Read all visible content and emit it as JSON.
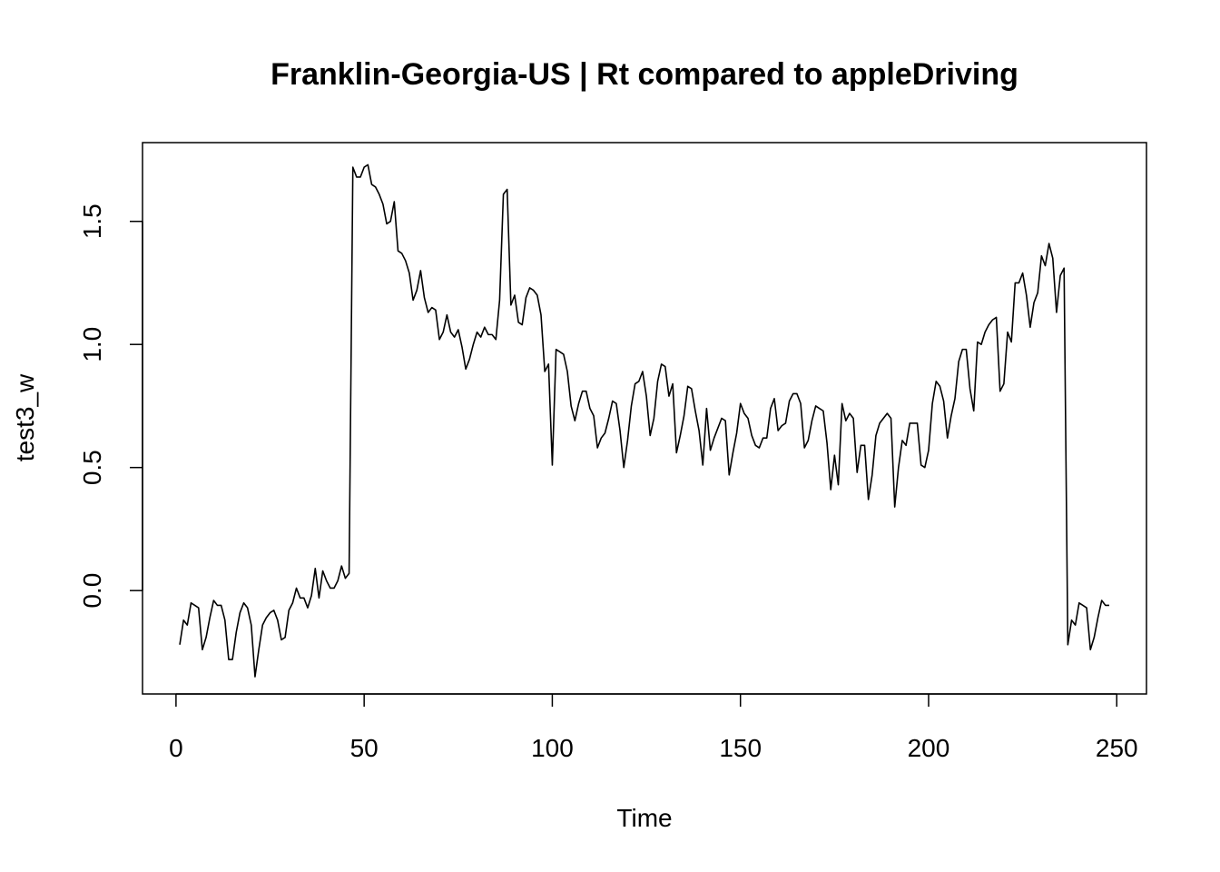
{
  "chart_data": {
    "type": "line",
    "title": "Franklin-Georgia-US | Rt compared to appleDriving",
    "xlabel": "Time",
    "ylabel": "test3_w",
    "xlim": [
      -8.9,
      257.9
    ],
    "ylim": [
      -0.42,
      1.82
    ],
    "xticks": [
      0,
      50,
      100,
      150,
      200,
      250
    ],
    "xtick_labels": [
      "0",
      "50",
      "100",
      "150",
      "200",
      "250"
    ],
    "yticks": [
      0.0,
      0.5,
      1.0,
      1.5
    ],
    "ytick_labels": [
      "0.0",
      "0.5",
      "1.0",
      "1.5"
    ],
    "grid": false,
    "legend": "none",
    "line_color": "#000000",
    "series": [
      {
        "x": [
          1,
          2,
          3,
          4,
          5,
          6,
          7,
          8,
          9,
          10,
          11,
          12,
          13,
          14,
          15,
          16,
          17,
          18,
          19,
          20,
          21,
          22,
          23,
          24,
          25,
          26,
          27,
          28,
          29,
          30,
          31,
          32,
          33,
          34,
          35,
          36,
          37,
          38,
          39,
          40,
          41,
          42,
          43,
          44,
          45,
          46,
          47,
          48,
          49,
          50,
          51,
          52,
          53,
          54,
          55,
          56,
          57,
          58,
          59,
          60,
          61,
          62,
          63,
          64,
          65,
          66,
          67,
          68,
          69,
          70,
          71,
          72,
          73,
          74,
          75,
          76,
          77,
          78,
          79,
          80,
          81,
          82,
          83,
          84,
          85,
          86,
          87,
          88,
          89,
          90,
          91,
          92,
          93,
          94,
          95,
          96,
          97,
          98,
          99,
          100,
          101,
          102,
          103,
          104,
          105,
          106,
          107,
          108,
          109,
          110,
          111,
          112,
          113,
          114,
          115,
          116,
          117,
          118,
          119,
          120,
          121,
          122,
          123,
          124,
          125,
          126,
          127,
          128,
          129,
          130,
          131,
          132,
          133,
          134,
          135,
          136,
          137,
          138,
          139,
          140,
          141,
          142,
          143,
          144,
          145,
          146,
          147,
          148,
          149,
          150,
          151,
          152,
          153,
          154,
          155,
          156,
          157,
          158,
          159,
          160,
          161,
          162,
          163,
          164,
          165,
          166,
          167,
          168,
          169,
          170,
          171,
          172,
          173,
          174,
          175,
          176,
          177,
          178,
          179,
          180,
          181,
          182,
          183,
          184,
          185,
          186,
          187,
          188,
          189,
          190,
          191,
          192,
          193,
          194,
          195,
          196,
          197,
          198,
          199,
          200,
          201,
          202,
          203,
          204,
          205,
          206,
          207,
          208,
          209,
          210,
          211,
          212,
          213,
          214,
          215,
          216,
          217,
          218,
          219,
          220,
          221,
          222,
          223,
          224,
          225,
          226,
          227,
          228,
          229,
          230,
          231,
          232,
          233,
          234,
          235,
          236,
          237,
          238,
          239,
          240,
          241,
          242,
          243,
          244,
          245,
          246,
          247,
          248
        ],
        "values": [
          -0.22,
          -0.12,
          -0.14,
          -0.05,
          -0.06,
          -0.07,
          -0.24,
          -0.19,
          -0.11,
          -0.04,
          -0.06,
          -0.06,
          -0.12,
          -0.28,
          -0.28,
          -0.17,
          -0.09,
          -0.05,
          -0.07,
          -0.14,
          -0.35,
          -0.24,
          -0.14,
          -0.11,
          -0.09,
          -0.08,
          -0.12,
          -0.2,
          -0.19,
          -0.08,
          -0.05,
          0.01,
          -0.03,
          -0.03,
          -0.07,
          -0.02,
          0.09,
          -0.03,
          0.08,
          0.04,
          0.01,
          0.01,
          0.04,
          0.1,
          0.05,
          0.07,
          1.72,
          1.68,
          1.68,
          1.72,
          1.73,
          1.65,
          1.64,
          1.61,
          1.57,
          1.49,
          1.5,
          1.58,
          1.38,
          1.37,
          1.34,
          1.29,
          1.18,
          1.22,
          1.3,
          1.19,
          1.13,
          1.15,
          1.14,
          1.02,
          1.05,
          1.12,
          1.05,
          1.03,
          1.06,
          0.99,
          0.9,
          0.94,
          1.0,
          1.05,
          1.03,
          1.07,
          1.04,
          1.04,
          1.02,
          1.18,
          1.61,
          1.63,
          1.16,
          1.2,
          1.09,
          1.08,
          1.19,
          1.23,
          1.22,
          1.2,
          1.12,
          0.89,
          0.92,
          0.51,
          0.98,
          0.97,
          0.96,
          0.89,
          0.75,
          0.69,
          0.76,
          0.81,
          0.81,
          0.74,
          0.71,
          0.58,
          0.62,
          0.64,
          0.7,
          0.77,
          0.76,
          0.65,
          0.5,
          0.61,
          0.75,
          0.84,
          0.85,
          0.89,
          0.79,
          0.63,
          0.7,
          0.85,
          0.92,
          0.91,
          0.79,
          0.84,
          0.56,
          0.63,
          0.71,
          0.83,
          0.82,
          0.73,
          0.65,
          0.51,
          0.74,
          0.57,
          0.62,
          0.66,
          0.7,
          0.69,
          0.47,
          0.56,
          0.64,
          0.76,
          0.72,
          0.7,
          0.63,
          0.59,
          0.58,
          0.62,
          0.62,
          0.74,
          0.78,
          0.65,
          0.67,
          0.68,
          0.77,
          0.8,
          0.8,
          0.76,
          0.58,
          0.61,
          0.69,
          0.75,
          0.74,
          0.73,
          0.6,
          0.41,
          0.55,
          0.43,
          0.76,
          0.69,
          0.72,
          0.7,
          0.48,
          0.59,
          0.59,
          0.37,
          0.47,
          0.63,
          0.68,
          0.7,
          0.72,
          0.7,
          0.34,
          0.5,
          0.61,
          0.59,
          0.68,
          0.68,
          0.68,
          0.51,
          0.5,
          0.57,
          0.76,
          0.85,
          0.83,
          0.77,
          0.62,
          0.71,
          0.78,
          0.93,
          0.98,
          0.98,
          0.82,
          0.73,
          1.01,
          1.0,
          1.05,
          1.08,
          1.1,
          1.11,
          0.81,
          0.84,
          1.05,
          1.01,
          1.25,
          1.25,
          1.29,
          1.2,
          1.07,
          1.17,
          1.21,
          1.36,
          1.32,
          1.41,
          1.35,
          1.13,
          1.28,
          1.31,
          -0.22,
          -0.12,
          -0.14,
          -0.05,
          -0.06,
          -0.07,
          -0.24,
          -0.19,
          -0.11,
          -0.04,
          -0.06,
          -0.06
        ]
      }
    ]
  }
}
